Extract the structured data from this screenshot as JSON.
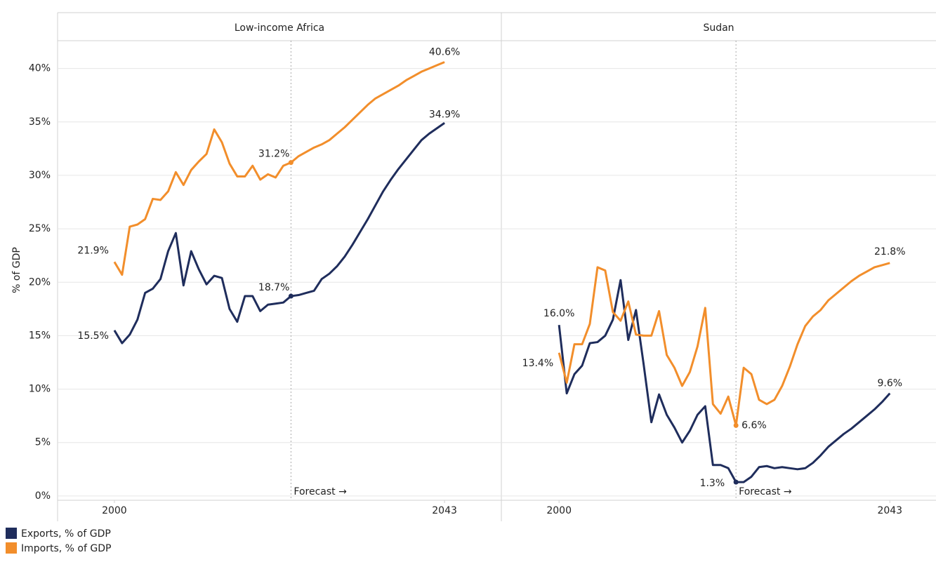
{
  "chart_data": [
    {
      "type": "line",
      "title": "Low-income Africa",
      "ylabel": "% of GDP",
      "x": [
        2000,
        2001,
        2002,
        2003,
        2004,
        2005,
        2006,
        2007,
        2008,
        2009,
        2010,
        2011,
        2012,
        2013,
        2014,
        2015,
        2016,
        2017,
        2018,
        2019,
        2020,
        2021,
        2022,
        2023,
        2024,
        2025,
        2026,
        2027,
        2028,
        2029,
        2030,
        2031,
        2032,
        2033,
        2034,
        2035,
        2036,
        2037,
        2038,
        2039,
        2040,
        2041,
        2042,
        2043
      ],
      "xlim": [
        1992.6,
        2050.4
      ],
      "xticks": [
        2000,
        2043
      ],
      "ylim": [
        -0.4,
        42.6
      ],
      "yticks": [
        {
          "value": 0,
          "label": "0%"
        },
        {
          "value": 5,
          "label": "5%"
        },
        {
          "value": 10,
          "label": "10%"
        },
        {
          "value": 15,
          "label": "15%"
        },
        {
          "value": 20,
          "label": "20%"
        },
        {
          "value": 25,
          "label": "25%"
        },
        {
          "value": 30,
          "label": "30%"
        },
        {
          "value": 35,
          "label": "35%"
        },
        {
          "value": 40,
          "label": "40%"
        }
      ],
      "grid": true,
      "forecast_x": 2023,
      "forecast_label": "Forecast →",
      "series": [
        {
          "name": "Exports, % of GDP",
          "color": "#1f2d5c",
          "values": [
            15.5,
            14.3,
            15.1,
            16.5,
            19.0,
            19.4,
            20.3,
            22.9,
            24.6,
            19.7,
            22.9,
            21.2,
            19.8,
            20.6,
            20.4,
            17.5,
            16.3,
            18.7,
            18.7,
            17.3,
            17.9,
            18.0,
            18.1,
            18.7,
            18.8,
            19.0,
            19.2,
            20.3,
            20.8,
            21.5,
            22.4,
            23.5,
            24.7,
            25.9,
            27.2,
            28.5,
            29.6,
            30.6,
            31.5,
            32.4,
            33.3,
            33.9,
            34.4,
            34.9
          ],
          "value_labels": [
            "15.5%",
            null,
            null,
            null,
            null,
            null,
            null,
            null,
            null,
            null,
            null,
            null,
            null,
            null,
            null,
            null,
            null,
            null,
            null,
            null,
            null,
            null,
            null,
            "18.7%",
            null,
            null,
            null,
            null,
            null,
            null,
            null,
            null,
            null,
            null,
            null,
            null,
            null,
            null,
            null,
            null,
            null,
            null,
            null,
            "34.9%"
          ]
        },
        {
          "name": "Imports, % of GDP",
          "color": "#f28e2b",
          "values": [
            21.9,
            20.7,
            25.2,
            25.4,
            25.9,
            27.8,
            27.7,
            28.5,
            30.3,
            29.1,
            30.5,
            31.3,
            32.0,
            34.3,
            33.1,
            31.1,
            29.9,
            29.9,
            30.9,
            29.6,
            30.1,
            29.8,
            30.9,
            31.2,
            31.8,
            32.2,
            32.6,
            32.9,
            33.3,
            33.9,
            34.5,
            35.2,
            35.9,
            36.6,
            37.2,
            37.6,
            38.0,
            38.4,
            38.9,
            39.3,
            39.7,
            40.0,
            40.3,
            40.6
          ],
          "value_labels": [
            "21.9%",
            null,
            null,
            null,
            null,
            null,
            null,
            null,
            null,
            null,
            null,
            null,
            null,
            null,
            null,
            null,
            null,
            null,
            null,
            null,
            null,
            null,
            null,
            "31.2%",
            null,
            null,
            null,
            null,
            null,
            null,
            null,
            null,
            null,
            null,
            null,
            null,
            null,
            null,
            null,
            null,
            null,
            null,
            null,
            "40.6%"
          ]
        }
      ]
    },
    {
      "type": "line",
      "title": "Sudan",
      "x": [
        2000,
        2001,
        2002,
        2003,
        2004,
        2005,
        2006,
        2007,
        2008,
        2009,
        2010,
        2011,
        2012,
        2013,
        2014,
        2015,
        2016,
        2017,
        2018,
        2019,
        2020,
        2021,
        2022,
        2023,
        2024,
        2025,
        2026,
        2027,
        2028,
        2029,
        2030,
        2031,
        2032,
        2033,
        2034,
        2035,
        2036,
        2037,
        2038,
        2039,
        2040,
        2041,
        2042,
        2043
      ],
      "xlim": [
        1992.5,
        2049.0
      ],
      "xticks": [
        2000,
        2043
      ],
      "ylim": [
        -0.4,
        42.6
      ],
      "yticks": [
        0,
        5,
        10,
        15,
        20,
        25,
        30,
        35,
        40
      ],
      "grid": true,
      "forecast_x": 2023,
      "forecast_label": "Forecast →",
      "series": [
        {
          "color": "#1f2d5c",
          "values": [
            16.0,
            9.6,
            11.4,
            12.2,
            14.3,
            14.4,
            15.0,
            16.5,
            20.2,
            14.6,
            17.4,
            12.3,
            6.9,
            9.5,
            7.6,
            6.4,
            5.0,
            6.1,
            7.6,
            8.4,
            2.9,
            2.9,
            2.6,
            1.3,
            1.3,
            1.8,
            2.7,
            2.8,
            2.6,
            2.7,
            2.6,
            2.5,
            2.6,
            3.1,
            3.8,
            4.6,
            5.2,
            5.8,
            6.3,
            6.9,
            7.5,
            8.1,
            8.8,
            9.6
          ],
          "value_labels": [
            "16.0%",
            null,
            null,
            null,
            null,
            null,
            null,
            null,
            null,
            null,
            null,
            null,
            null,
            null,
            null,
            null,
            null,
            null,
            null,
            null,
            null,
            null,
            null,
            "1.3%",
            null,
            null,
            null,
            null,
            null,
            null,
            null,
            null,
            null,
            null,
            null,
            null,
            null,
            null,
            null,
            null,
            null,
            null,
            null,
            "9.6%"
          ]
        },
        {
          "color": "#f28e2b",
          "values": [
            13.4,
            10.6,
            14.2,
            14.2,
            16.1,
            21.4,
            21.1,
            17.2,
            16.4,
            18.2,
            15.1,
            15.0,
            15.0,
            17.3,
            13.2,
            12.0,
            10.3,
            11.6,
            14.0,
            17.6,
            8.6,
            7.7,
            9.3,
            6.6,
            12.0,
            11.4,
            9.0,
            8.6,
            9.0,
            10.3,
            12.1,
            14.2,
            15.9,
            16.8,
            17.4,
            18.3,
            18.9,
            19.5,
            20.1,
            20.6,
            21.0,
            21.4,
            21.6,
            21.8
          ],
          "value_labels": [
            "13.4%",
            null,
            null,
            null,
            null,
            null,
            null,
            null,
            null,
            null,
            null,
            null,
            null,
            null,
            null,
            null,
            null,
            null,
            null,
            null,
            null,
            null,
            null,
            "6.6%",
            null,
            null,
            null,
            null,
            null,
            null,
            null,
            null,
            null,
            null,
            null,
            null,
            null,
            null,
            null,
            null,
            null,
            null,
            null,
            "21.8%"
          ]
        }
      ]
    }
  ]
}
